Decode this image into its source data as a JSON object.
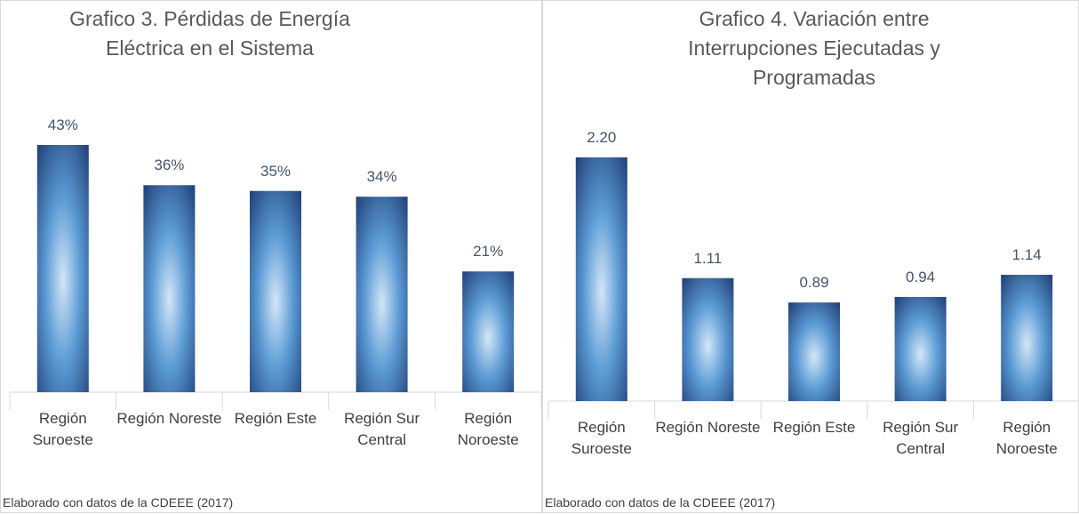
{
  "chart_data": [
    {
      "type": "bar",
      "title": "Grafico 3. Pérdidas de Energía Eléctrica en el Sistema",
      "categories": [
        "Región Suroeste",
        "Región Noreste",
        "Región Este",
        "Región Sur Central",
        "Región Noroeste"
      ],
      "values": [
        43,
        36,
        35,
        34,
        21
      ],
      "value_labels": [
        "43%",
        "36%",
        "35%",
        "34%",
        "21%"
      ],
      "color": "#1f3c73",
      "source": "Elaborado con datos de la CDEEE (2017)"
    },
    {
      "type": "bar",
      "title": "Grafico 4. Variación entre Interrupciones Ejecutadas y Programadas",
      "categories": [
        "Región Suroeste",
        "Región Noreste",
        "Región Este",
        "Región Sur Central",
        "Región Noroeste"
      ],
      "values": [
        2.2,
        1.11,
        0.89,
        0.94,
        1.14
      ],
      "value_labels": [
        "2.20",
        "1.11",
        "0.89",
        "0.94",
        "1.14"
      ],
      "color": "#1f3c73",
      "source": "Elaborado con datos de la CDEEE (2017)"
    }
  ]
}
